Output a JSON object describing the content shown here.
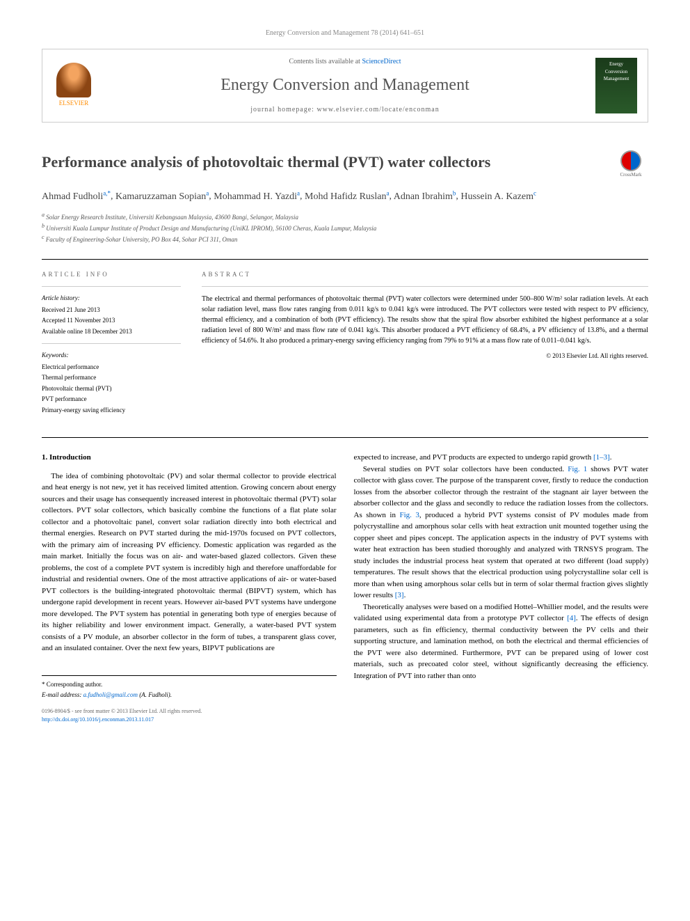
{
  "header": {
    "citation": "Energy Conversion and Management 78 (2014) 641–651",
    "contents_prefix": "Contents lists available at ",
    "contents_link": "ScienceDirect",
    "journal_name": "Energy Conversion and Management",
    "homepage_prefix": "journal homepage: ",
    "homepage_url": "www.elsevier.com/locate/enconman",
    "publisher": "ELSEVIER",
    "cover_title": "Energy",
    "cover_subtitle": "Conversion Management"
  },
  "article": {
    "title": "Performance analysis of photovoltaic thermal (PVT) water collectors",
    "crossmark": "CrossMark",
    "authors_html": "Ahmad Fudholi|a,*|, Kamaruzzaman Sopian|a|, Mohammad H. Yazdi|a|, Mohd Hafidz Ruslan|a|, Adnan Ibrahim|b|, Hussein A. Kazem|c|",
    "authors": [
      {
        "name": "Ahmad Fudholi",
        "sup": "a,*"
      },
      {
        "name": "Kamaruzzaman Sopian",
        "sup": "a"
      },
      {
        "name": "Mohammad H. Yazdi",
        "sup": "a"
      },
      {
        "name": "Mohd Hafidz Ruslan",
        "sup": "a"
      },
      {
        "name": "Adnan Ibrahim",
        "sup": "b"
      },
      {
        "name": "Hussein A. Kazem",
        "sup": "c"
      }
    ],
    "affiliations": [
      {
        "sup": "a",
        "text": "Solar Energy Research Institute, Universiti Kebangsaan Malaysia, 43600 Bangi, Selangor, Malaysia"
      },
      {
        "sup": "b",
        "text": "Universiti Kuala Lumpur Institute of Product Design and Manufacturing (UniKL IPROM), 56100 Cheras, Kuala Lumpur, Malaysia"
      },
      {
        "sup": "c",
        "text": "Faculty of Engineering-Sohar University, PO Box 44, Sohar PCI 311, Oman"
      }
    ]
  },
  "info": {
    "heading": "ARTICLE INFO",
    "history_heading": "Article history:",
    "received": "Received 21 June 2013",
    "accepted": "Accepted 11 November 2013",
    "online": "Available online 18 December 2013",
    "keywords_heading": "Keywords:",
    "keywords": [
      "Electrical performance",
      "Thermal performance",
      "Photovoltaic thermal (PVT)",
      "PVT performance",
      "Primary-energy saving efficiency"
    ]
  },
  "abstract": {
    "heading": "ABSTRACT",
    "text": "The electrical and thermal performances of photovoltaic thermal (PVT) water collectors were determined under 500–800 W/m² solar radiation levels. At each solar radiation level, mass flow rates ranging from 0.011 kg/s to 0.041 kg/s were introduced. The PVT collectors were tested with respect to PV efficiency, thermal efficiency, and a combination of both (PVT efficiency). The results show that the spiral flow absorber exhibited the highest performance at a solar radiation level of 800 W/m² and mass flow rate of 0.041 kg/s. This absorber produced a PVT efficiency of 68.4%, a PV efficiency of 13.8%, and a thermal efficiency of 54.6%. It also produced a primary-energy saving efficiency ranging from 79% to 91% at a mass flow rate of 0.011–0.041 kg/s.",
    "copyright": "© 2013 Elsevier Ltd. All rights reserved."
  },
  "body": {
    "section_heading": "1. Introduction",
    "col1_p1": "The idea of combining photovoltaic (PV) and solar thermal collector to provide electrical and heat energy is not new, yet it has received limited attention. Growing concern about energy sources and their usage has consequently increased interest in photovoltaic thermal (PVT) solar collectors. PVT solar collectors, which basically combine the functions of a flat plate solar collector and a photovoltaic panel, convert solar radiation directly into both electrical and thermal energies. Research on PVT started during the mid-1970s focused on PVT collectors, with the primary aim of increasing PV efficiency. Domestic application was regarded as the main market. Initially the focus was on air- and water-based glazed collectors. Given these problems, the cost of a complete PVT system is incredibly high and therefore unaffordable for industrial and residential owners. One of the most attractive applications of air- or water-based PVT collectors is the building-integrated photovoltaic thermal (BIPVT) system, which has undergone rapid development in recent years. However air-based PVT systems have undergone more developed. The PVT system has potential in generating both type of energies because of its higher reliability and lower environment impact. Generally, a water-based PVT system consists of a PV module, an absorber collector in the form of tubes, a transparent glass cover, and an insulated container. Over the next few years, BIPVT publications are",
    "col2_p1": "expected to increase, and PVT products are expected to undergo rapid growth [1–3].",
    "col2_p2": "Several studies on PVT solar collectors have been conducted. Fig. 1 shows PVT water collector with glass cover. The purpose of the transparent cover, firstly to reduce the conduction losses from the absorber collector through the restraint of the stagnant air layer between the absorber collector and the glass and secondly to reduce the radiation losses from the collectors. As shown in Fig. 3, produced a hybrid PVT systems consist of PV modules made from polycrystalline and amorphous solar cells with heat extraction unit mounted together using the copper sheet and pipes concept. The application aspects in the industry of PVT systems with water heat extraction has been studied thoroughly and analyzed with TRNSYS program. The study includes the industrial process heat system that operated at two different (load supply) temperatures. The result shows that the electrical production using polycrystalline solar cell is more than when using amorphous solar cells but in term of solar thermal fraction gives slightly lower results [3].",
    "col2_p3": "Theoretically analyses were based on a modified Hottel–Whillier model, and the results were validated using experimental data from a prototype PVT collector [4]. The effects of design parameters, such as fin efficiency, thermal conductivity between the PV cells and their supporting structure, and lamination method, on both the electrical and thermal efficiencies of the PVT were also determined. Furthermore, PVT can be prepared using of lower cost materials, such as precoated color steel, without significantly decreasing the efficiency. Integration of PVT into rather than onto",
    "refs": {
      "r1_3": "[1–3]",
      "fig1": "Fig. 1",
      "fig3": "Fig. 3",
      "r3": "[3]",
      "r4": "[4]"
    }
  },
  "footer": {
    "corresponding_label": "* Corresponding author.",
    "email_label": "E-mail address: ",
    "email": "a.fudholi@gmail.com",
    "email_suffix": " (A. Fudholi).",
    "copyright_line": "0196-8904/$ - see front matter © 2013 Elsevier Ltd. All rights reserved.",
    "doi": "http://dx.doi.org/10.1016/j.enconman.2013.11.017"
  },
  "colors": {
    "link": "#0066cc",
    "text_gray": "#666666",
    "elsevier_orange": "#ff8c00"
  }
}
